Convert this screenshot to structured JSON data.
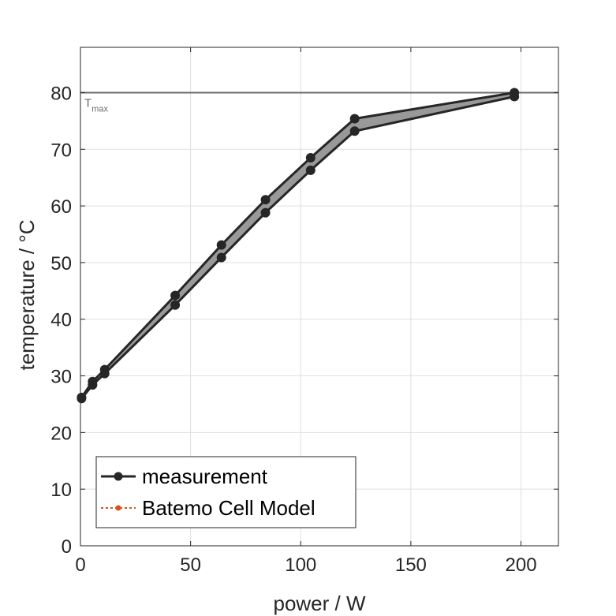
{
  "chart_data": {
    "type": "line",
    "title": "",
    "xlabel": "power / W",
    "ylabel": "temperature / °C",
    "xlim": [
      0,
      217
    ],
    "ylim": [
      0,
      88
    ],
    "xticks": [
      0,
      50,
      100,
      150,
      200
    ],
    "yticks": [
      0,
      10,
      20,
      30,
      40,
      50,
      60,
      70,
      80
    ],
    "grid": true,
    "legend_placement": "bottom-left",
    "reference_line": {
      "y": 80,
      "label_main": "T",
      "label_sub": "max",
      "color": "#6b6b6b"
    },
    "band": {
      "fill_color": "#999999"
    },
    "series": [
      {
        "name": "measurement",
        "color": "#262626",
        "marker": "circle",
        "line_style": "solid",
        "upper": {
          "x": [
            0.5,
            5.5,
            11,
            43,
            64,
            84,
            104.5,
            124.5,
            197
          ],
          "y": [
            26.2,
            29.0,
            31.1,
            44.2,
            53.1,
            61.1,
            68.5,
            75.4,
            80.0
          ]
        },
        "lower": {
          "x": [
            0.5,
            5.5,
            11,
            43,
            64,
            84,
            104.5,
            124.5,
            197
          ],
          "y": [
            26.0,
            28.4,
            30.4,
            42.5,
            50.9,
            58.8,
            66.3,
            73.2,
            79.3
          ]
        }
      },
      {
        "name": "Batemo Cell Model",
        "color": "#d95319",
        "marker": "circle",
        "line_style": "dotted",
        "upper": {
          "x": [],
          "y": []
        },
        "lower": {
          "x": [],
          "y": []
        }
      }
    ]
  }
}
